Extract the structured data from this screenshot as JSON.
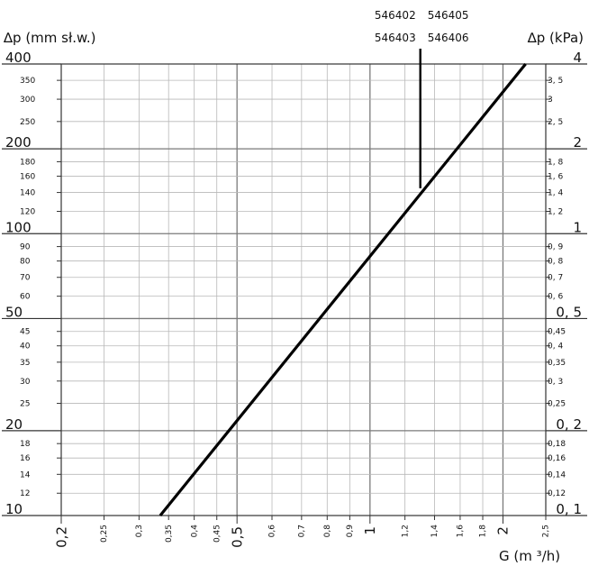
{
  "chart_data": {
    "type": "line",
    "xlabel": "G (m ³/h)",
    "ylabel_left": "∆p (mm sł.w.)",
    "ylabel_right": "∆p (kPa)",
    "x_scale": "log",
    "y_scale": "log",
    "xlim": [
      0.2,
      2.5
    ],
    "ylim_left": [
      10,
      400
    ],
    "ylim_right": [
      0.1,
      4
    ],
    "grid": true,
    "x_ticks": [
      {
        "v": 0.2,
        "label": "0,2",
        "major": true
      },
      {
        "v": 0.25,
        "label": "0,25",
        "major": false
      },
      {
        "v": 0.3,
        "label": "0,3",
        "major": false
      },
      {
        "v": 0.35,
        "label": "0,35",
        "major": false
      },
      {
        "v": 0.4,
        "label": "0,4",
        "major": false
      },
      {
        "v": 0.45,
        "label": "0,45",
        "major": false
      },
      {
        "v": 0.5,
        "label": "0,5",
        "major": true
      },
      {
        "v": 0.6,
        "label": "0,6",
        "major": false
      },
      {
        "v": 0.7,
        "label": "0,7",
        "major": false
      },
      {
        "v": 0.8,
        "label": "0,8",
        "major": false
      },
      {
        "v": 0.9,
        "label": "0,9",
        "major": false
      },
      {
        "v": 1,
        "label": "1",
        "major": true
      },
      {
        "v": 1.2,
        "label": "1,2",
        "major": false
      },
      {
        "v": 1.4,
        "label": "1,4",
        "major": false
      },
      {
        "v": 1.6,
        "label": "1,6",
        "major": false
      },
      {
        "v": 1.8,
        "label": "1,8",
        "major": false
      },
      {
        "v": 2,
        "label": "2",
        "major": true
      },
      {
        "v": 2.5,
        "label": "2,5",
        "major": false
      }
    ],
    "y_ticks_left": [
      {
        "v": 10,
        "label": "10",
        "major": true
      },
      {
        "v": 12,
        "label": "12",
        "major": false
      },
      {
        "v": 14,
        "label": "14",
        "major": false
      },
      {
        "v": 16,
        "label": "16",
        "major": false
      },
      {
        "v": 18,
        "label": "18",
        "major": false
      },
      {
        "v": 20,
        "label": "20",
        "major": true
      },
      {
        "v": 25,
        "label": "25",
        "major": false
      },
      {
        "v": 30,
        "label": "30",
        "major": false
      },
      {
        "v": 35,
        "label": "35",
        "major": false
      },
      {
        "v": 40,
        "label": "40",
        "major": false
      },
      {
        "v": 45,
        "label": "45",
        "major": false
      },
      {
        "v": 50,
        "label": "50",
        "major": true
      },
      {
        "v": 60,
        "label": "60",
        "major": false
      },
      {
        "v": 70,
        "label": "70",
        "major": false
      },
      {
        "v": 80,
        "label": "80",
        "major": false
      },
      {
        "v": 90,
        "label": "90",
        "major": false
      },
      {
        "v": 100,
        "label": "100",
        "major": true
      },
      {
        "v": 120,
        "label": "120",
        "major": false
      },
      {
        "v": 140,
        "label": "140",
        "major": false
      },
      {
        "v": 160,
        "label": "160",
        "major": false
      },
      {
        "v": 180,
        "label": "180",
        "major": false
      },
      {
        "v": 200,
        "label": "200",
        "major": true
      },
      {
        "v": 250,
        "label": "250",
        "major": false
      },
      {
        "v": 300,
        "label": "300",
        "major": false
      },
      {
        "v": 350,
        "label": "350",
        "major": false
      },
      {
        "v": 400,
        "label": "400",
        "major": true
      }
    ],
    "y_ticks_right": [
      {
        "v": 0.1,
        "label": "0, 1",
        "major": true
      },
      {
        "v": 0.12,
        "label": "0,12",
        "major": false
      },
      {
        "v": 0.14,
        "label": "0,14",
        "major": false
      },
      {
        "v": 0.16,
        "label": "0,16",
        "major": false
      },
      {
        "v": 0.18,
        "label": "0,18",
        "major": false
      },
      {
        "v": 0.2,
        "label": "0, 2",
        "major": true
      },
      {
        "v": 0.25,
        "label": "0,25",
        "major": false
      },
      {
        "v": 0.3,
        "label": "0, 3",
        "major": false
      },
      {
        "v": 0.35,
        "label": "0,35",
        "major": false
      },
      {
        "v": 0.4,
        "label": "0, 4",
        "major": false
      },
      {
        "v": 0.45,
        "label": "0,45",
        "major": false
      },
      {
        "v": 0.5,
        "label": "0, 5",
        "major": true
      },
      {
        "v": 0.6,
        "label": "0, 6",
        "major": false
      },
      {
        "v": 0.7,
        "label": "0, 7",
        "major": false
      },
      {
        "v": 0.8,
        "label": "0, 8",
        "major": false
      },
      {
        "v": 0.9,
        "label": "0, 9",
        "major": false
      },
      {
        "v": 1,
        "label": "1",
        "major": true
      },
      {
        "v": 1.2,
        "label": "1, 2",
        "major": false
      },
      {
        "v": 1.4,
        "label": "1, 4",
        "major": false
      },
      {
        "v": 1.6,
        "label": "1, 6",
        "major": false
      },
      {
        "v": 1.8,
        "label": "1, 8",
        "major": false
      },
      {
        "v": 2,
        "label": "2",
        "major": true
      },
      {
        "v": 2.5,
        "label": "2, 5",
        "major": false
      },
      {
        "v": 3,
        "label": "3",
        "major": false
      },
      {
        "v": 3.5,
        "label": "3, 5",
        "major": false
      },
      {
        "v": 4,
        "label": "4",
        "major": true
      }
    ],
    "series": [
      {
        "points": [
          {
            "x": 0.335,
            "y": 10
          },
          {
            "x": 2.25,
            "y": 400
          }
        ]
      }
    ],
    "annotations": [
      {
        "text_lines": [
          "546402",
          "546403"
        ],
        "side": "left",
        "line_x": 1.3,
        "line_y_bottom": 145
      },
      {
        "text_lines": [
          "546405",
          "546406"
        ],
        "side": "right"
      }
    ],
    "colors": {
      "grid": "#b8b8b8",
      "grid_major": "#7a7a7a",
      "line": "#000000",
      "axis": "#333333"
    }
  }
}
